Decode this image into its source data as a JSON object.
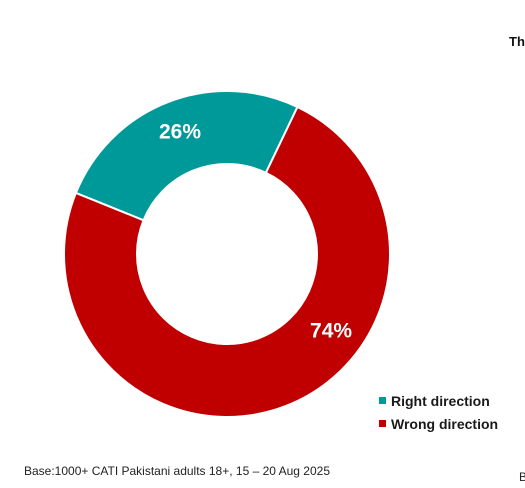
{
  "chart_data": {
    "type": "pie",
    "variant": "donut",
    "title": "",
    "slices": [
      {
        "name": "Right direction",
        "value": 26,
        "label": "26%",
        "color": "#009999"
      },
      {
        "name": "Wrong direction",
        "value": 74,
        "label": "74%",
        "color": "#c00000"
      }
    ],
    "legend": {
      "placement": "bottom-right",
      "items": [
        {
          "label": "Right direction",
          "color": "#009999"
        },
        {
          "label": "Wrong direction",
          "color": "#c00000"
        }
      ]
    }
  },
  "footnote": "Base:1000+ CATI Pakistani adults 18+, 15 – 20 Aug 2025",
  "cut_off_text": {
    "title_fragment": "Th",
    "footnote_fragment": "B"
  }
}
